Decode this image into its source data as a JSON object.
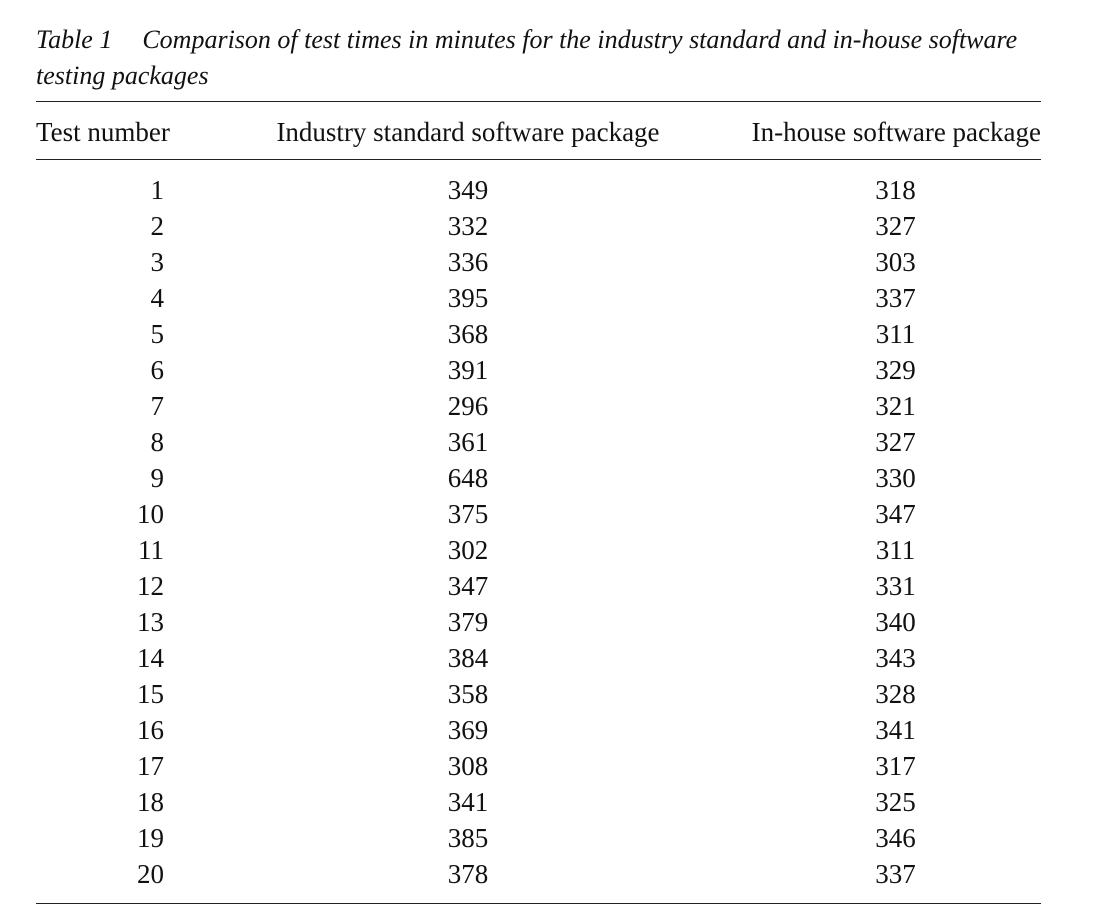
{
  "caption": {
    "label": "Table 1",
    "text": "Comparison of test times in minutes for the industry standard and in-house software testing packages"
  },
  "table": {
    "headers": [
      "Test number",
      "Industry standard software package",
      "In-house software package"
    ],
    "rows": [
      [
        "1",
        "349",
        "318"
      ],
      [
        "2",
        "332",
        "327"
      ],
      [
        "3",
        "336",
        "303"
      ],
      [
        "4",
        "395",
        "337"
      ],
      [
        "5",
        "368",
        "311"
      ],
      [
        "6",
        "391",
        "329"
      ],
      [
        "7",
        "296",
        "321"
      ],
      [
        "8",
        "361",
        "327"
      ],
      [
        "9",
        "648",
        "330"
      ],
      [
        "10",
        "375",
        "347"
      ],
      [
        "11",
        "302",
        "311"
      ],
      [
        "12",
        "347",
        "331"
      ],
      [
        "13",
        "379",
        "340"
      ],
      [
        "14",
        "384",
        "343"
      ],
      [
        "15",
        "358",
        "328"
      ],
      [
        "16",
        "369",
        "341"
      ],
      [
        "17",
        "308",
        "317"
      ],
      [
        "18",
        "341",
        "325"
      ],
      [
        "19",
        "385",
        "346"
      ],
      [
        "20",
        "378",
        "337"
      ]
    ]
  }
}
